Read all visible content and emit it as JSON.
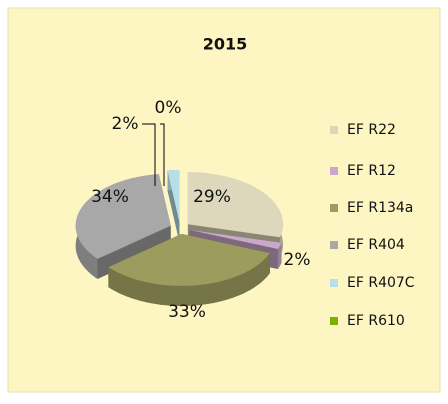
{
  "chart_data": {
    "type": "pie3d",
    "title": "2015",
    "categories": [
      "EF R22",
      "EF R12",
      "EF R134a",
      "EF R404",
      "EF R407C",
      "EF R610"
    ],
    "values": [
      29,
      2,
      33,
      34,
      2,
      0
    ],
    "value_labels": [
      "29%",
      "2%",
      "33%",
      "34%",
      "2%",
      "0%"
    ],
    "colors": [
      "#ddd8bb",
      "#c9a8c9",
      "#9c9c5e",
      "#a8a8a8",
      "#b9dfe6",
      "#7fb000"
    ],
    "legend": "right"
  }
}
